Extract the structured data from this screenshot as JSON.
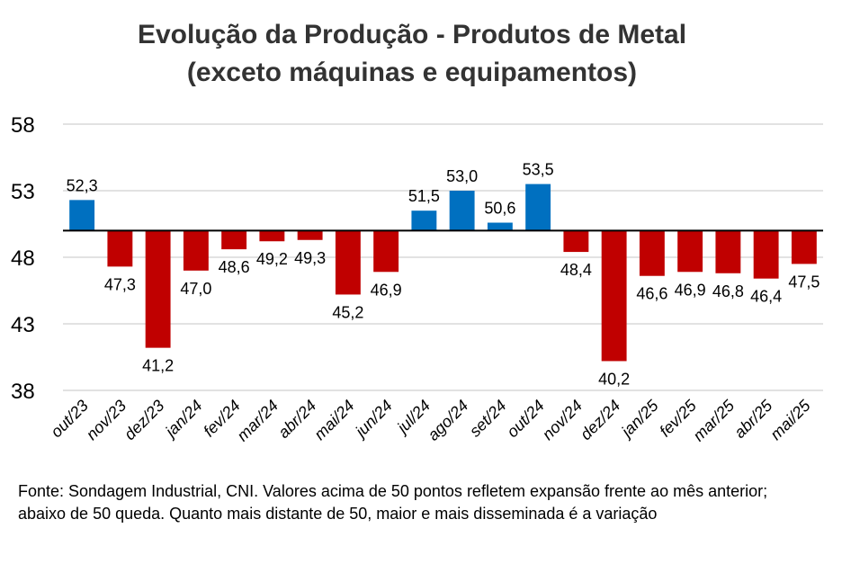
{
  "chart_data": {
    "type": "bar",
    "title": [
      "Evolução da Produção - Produtos de Metal",
      "(exceto máquinas e equipamentos)"
    ],
    "categories": [
      "out/23",
      "nov/23",
      "dez/23",
      "jan/24",
      "fev/24",
      "mar/24",
      "abr/24",
      "mai/24",
      "jun/24",
      "jul/24",
      "ago/24",
      "set/24",
      "out/24",
      "nov/24",
      "dez/24",
      "jan/25",
      "fev/25",
      "mar/25",
      "abr/25",
      "mai/25"
    ],
    "values": [
      52.3,
      47.3,
      41.2,
      47.0,
      48.6,
      49.2,
      49.3,
      45.2,
      46.9,
      51.5,
      53.0,
      50.6,
      53.5,
      48.4,
      40.2,
      46.6,
      46.9,
      46.8,
      46.4,
      47.5
    ],
    "value_labels": [
      "52,3",
      "47,3",
      "41,2",
      "47,0",
      "48,6",
      "49,2",
      "49,3",
      "45,2",
      "46,9",
      "51,5",
      "53,0",
      "50,6",
      "53,5",
      "48,4",
      "40,2",
      "46,6",
      "46,9",
      "46,8",
      "46,4",
      "47,5"
    ],
    "baseline": 50,
    "ylim": [
      38,
      58
    ],
    "yticks": [
      38,
      43,
      48,
      53,
      58
    ],
    "grid": true,
    "colors": {
      "above": "#0070C0",
      "below": "#C00000",
      "grid": "#D9D9D9",
      "baseline": "#000000"
    },
    "xlabel": "",
    "ylabel": ""
  },
  "footer": {
    "source_note": "Fonte: Sondagem Industrial, CNI. Valores acima de 50 pontos refletem expansão frente ao mês anterior; abaixo de 50 queda. Quanto mais distante de 50, maior e mais disseminada é a variação"
  }
}
